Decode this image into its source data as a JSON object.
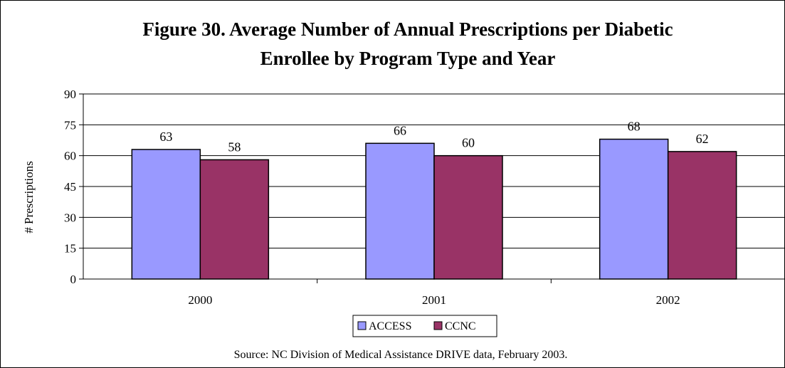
{
  "chart_data": {
    "type": "bar",
    "title_lines": [
      "Figure 30. Average Number of Annual Prescriptions per Diabetic",
      "Enrollee by Program Type and Year"
    ],
    "ylabel": "# Prescriptions",
    "xlabel": "",
    "categories": [
      "2000",
      "2001",
      "2002"
    ],
    "series": [
      {
        "name": "ACCESS",
        "values": [
          63,
          66,
          68
        ],
        "color": "#9999ff"
      },
      {
        "name": "CCNC",
        "values": [
          58,
          60,
          62
        ],
        "color": "#993366"
      }
    ],
    "ylim": [
      0,
      90
    ],
    "yticks": [
      0,
      15,
      30,
      45,
      60,
      75,
      90
    ],
    "grid": true,
    "legend": "bottom-center",
    "source": "Source:  NC Division of Medical Assistance DRIVE data, February 2003."
  }
}
